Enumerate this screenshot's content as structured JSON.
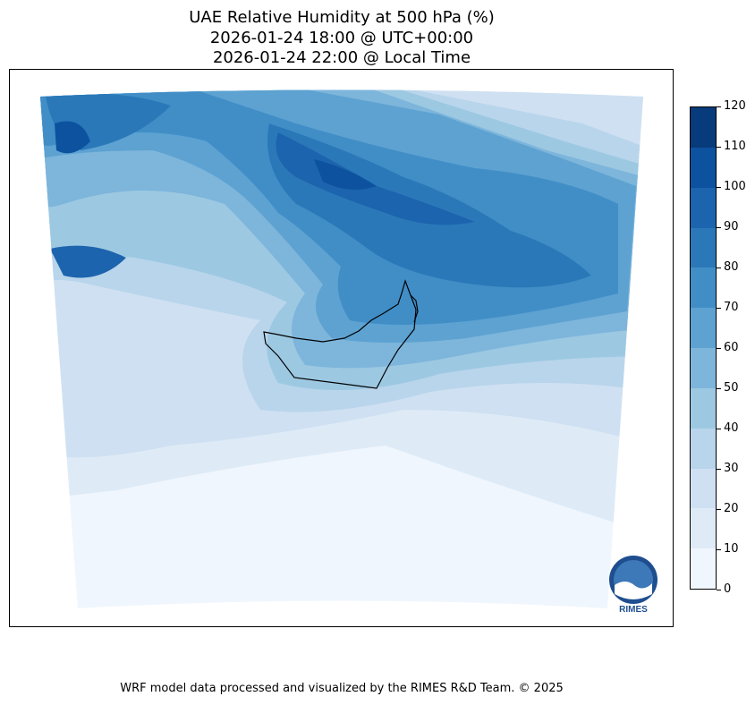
{
  "title": {
    "line1": "UAE Relative Humidity at 500 hPa (%)",
    "line2": "2026-01-24 18:00 @ UTC+00:00",
    "line3": "2026-01-24 22:00 @ Local Time"
  },
  "colorbar": {
    "ticks": [
      "0",
      "10",
      "20",
      "30",
      "40",
      "50",
      "60",
      "70",
      "80",
      "90",
      "100",
      "110",
      "120"
    ],
    "levels": [
      {
        "range": "0-10",
        "color": "#f0f6fd"
      },
      {
        "range": "10-20",
        "color": "#deebf7"
      },
      {
        "range": "20-30",
        "color": "#cfe0f2"
      },
      {
        "range": "30-40",
        "color": "#b8d5eb"
      },
      {
        "range": "40-50",
        "color": "#9cc8e2"
      },
      {
        "range": "50-60",
        "color": "#7db5db"
      },
      {
        "range": "60-70",
        "color": "#5da2d1"
      },
      {
        "range": "70-80",
        "color": "#418ec7"
      },
      {
        "range": "80-90",
        "color": "#2b78b9"
      },
      {
        "range": "90-100",
        "color": "#1c64ad"
      },
      {
        "range": "100-110",
        "color": "#0d529f"
      },
      {
        "range": "110-120",
        "color": "#083b7b"
      }
    ]
  },
  "logo": {
    "text": "RIMES"
  },
  "footer": "WRF model data processed and visualized by the RIMES R&D Team. © 2025"
}
